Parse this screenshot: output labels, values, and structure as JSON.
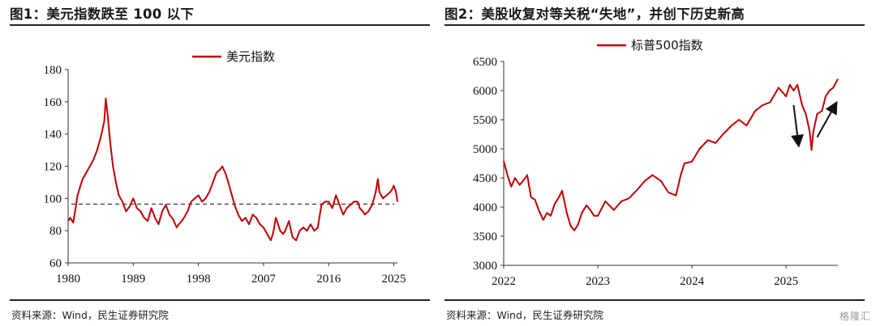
{
  "colors": {
    "series": "#c00000",
    "axis": "#333333",
    "refline": "#222222"
  },
  "watermark": "格隆汇",
  "charts": [
    {
      "title": "图1：美元指数跌至 100 以下",
      "source": "资料来源：Wind，民生证券研究院",
      "chart_data": {
        "type": "line",
        "title": "",
        "xlabel": "",
        "ylabel": "",
        "x_ticks": [
          "1980",
          "1989",
          "1998",
          "2007",
          "2016",
          "2025"
        ],
        "x_range": [
          1980,
          2025.5
        ],
        "ylim": [
          60,
          180
        ],
        "y_ticks": [
          60,
          80,
          100,
          120,
          140,
          160,
          180
        ],
        "grid": false,
        "legend_position": "top-center",
        "reference_line": {
          "y": 96.5,
          "style": "dashed"
        },
        "series": [
          {
            "name": "美元指数",
            "x": [
              1980.0,
              1980.3,
              1980.7,
              1981.0,
              1981.3,
              1981.7,
              1982.0,
              1982.5,
              1983.0,
              1983.5,
              1984.0,
              1984.5,
              1985.0,
              1985.2,
              1985.5,
              1985.8,
              1986.2,
              1986.6,
              1987.0,
              1987.5,
              1988.0,
              1988.5,
              1989.0,
              1989.5,
              1990.0,
              1990.5,
              1991.0,
              1991.5,
              1992.0,
              1992.5,
              1993.0,
              1993.5,
              1994.0,
              1994.5,
              1995.0,
              1995.3,
              1995.7,
              1996.0,
              1996.5,
              1997.0,
              1997.5,
              1998.0,
              1998.5,
              1999.0,
              1999.5,
              2000.0,
              2000.5,
              2001.0,
              2001.3,
              2001.7,
              2002.0,
              2002.5,
              2003.0,
              2003.5,
              2004.0,
              2004.5,
              2005.0,
              2005.5,
              2006.0,
              2006.5,
              2007.0,
              2007.5,
              2008.0,
              2008.3,
              2008.7,
              2009.0,
              2009.3,
              2009.7,
              2010.0,
              2010.5,
              2011.0,
              2011.5,
              2012.0,
              2012.5,
              2013.0,
              2013.5,
              2014.0,
              2014.5,
              2015.0,
              2015.5,
              2016.0,
              2016.5,
              2017.0,
              2017.5,
              2018.0,
              2018.5,
              2019.0,
              2019.5,
              2020.0,
              2020.3,
              2020.7,
              2021.0,
              2021.5,
              2022.0,
              2022.5,
              2022.8,
              2023.0,
              2023.5,
              2024.0,
              2024.5,
              2024.8,
              2025.0,
              2025.3,
              2025.5
            ],
            "values": [
              86,
              88,
              85,
              93,
              102,
              108,
              112,
              116,
              120,
              124,
              130,
              138,
              148,
              162,
              150,
              135,
              120,
              110,
              102,
              98,
              92,
              95,
              100,
              94,
              92,
              88,
              86,
              94,
              88,
              84,
              92,
              96,
              90,
              87,
              82,
              84,
              86,
              88,
              92,
              98,
              100,
              102,
              98,
              100,
              104,
              110,
              116,
              118,
              120,
              116,
              112,
              104,
              96,
              90,
              86,
              88,
              84,
              90,
              88,
              84,
              82,
              78,
              74,
              78,
              88,
              84,
              80,
              78,
              80,
              86,
              76,
              74,
              80,
              82,
              80,
              84,
              80,
              82,
              96,
              98,
              98,
              94,
              102,
              96,
              90,
              94,
              96,
              98,
              98,
              94,
              92,
              90,
              92,
              96,
              104,
              112,
              104,
              100,
              102,
              104,
              106,
              108,
              104,
              98
            ]
          }
        ]
      }
    },
    {
      "title": "图2：美股收复对等关税“失地”，并创下历史新高",
      "source": "资料来源：Wind，民生证券研究院",
      "chart_data": {
        "type": "line",
        "title": "",
        "xlabel": "",
        "ylabel": "",
        "x_ticks": [
          "2022",
          "2023",
          "2024",
          "2025"
        ],
        "x_range": [
          2022.0,
          2025.55
        ],
        "ylim": [
          3000,
          6500
        ],
        "y_ticks": [
          3000,
          3500,
          4000,
          4500,
          5000,
          5500,
          6000,
          6500
        ],
        "grid": false,
        "legend_position": "top-center",
        "annotations": [
          {
            "type": "arrow",
            "direction": "down",
            "from": [
              2025.08,
              5750
            ],
            "to": [
              2025.13,
              5100
            ]
          },
          {
            "type": "arrow",
            "direction": "up",
            "from": [
              2025.33,
              5200
            ],
            "to": [
              2025.52,
              5750
            ]
          }
        ],
        "series": [
          {
            "name": "标普500指数",
            "x": [
              2022.0,
              2022.04,
              2022.08,
              2022.12,
              2022.17,
              2022.21,
              2022.25,
              2022.29,
              2022.33,
              2022.38,
              2022.42,
              2022.46,
              2022.5,
              2022.54,
              2022.58,
              2022.62,
              2022.67,
              2022.71,
              2022.75,
              2022.79,
              2022.83,
              2022.88,
              2022.92,
              2022.96,
              2023.0,
              2023.08,
              2023.17,
              2023.25,
              2023.33,
              2023.42,
              2023.5,
              2023.58,
              2023.67,
              2023.75,
              2023.83,
              2023.88,
              2023.92,
              2024.0,
              2024.08,
              2024.17,
              2024.25,
              2024.33,
              2024.42,
              2024.5,
              2024.58,
              2024.67,
              2024.75,
              2024.83,
              2024.92,
              2025.0,
              2025.04,
              2025.08,
              2025.12,
              2025.17,
              2025.21,
              2025.25,
              2025.27,
              2025.29,
              2025.33,
              2025.38,
              2025.42,
              2025.46,
              2025.5,
              2025.55
            ],
            "values": [
              4790,
              4550,
              4350,
              4500,
              4380,
              4460,
              4550,
              4170,
              4130,
              3920,
              3780,
              3900,
              3850,
              4050,
              4150,
              4280,
              3900,
              3680,
              3600,
              3700,
              3900,
              4030,
              3950,
              3850,
              3850,
              4100,
              3950,
              4100,
              4150,
              4300,
              4450,
              4550,
              4450,
              4250,
              4200,
              4550,
              4750,
              4780,
              5000,
              5150,
              5100,
              5250,
              5400,
              5500,
              5400,
              5650,
              5750,
              5800,
              6050,
              5900,
              6100,
              6000,
              6100,
              5750,
              5600,
              5300,
              4980,
              5300,
              5600,
              5650,
              5900,
              6000,
              6050,
              6200
            ]
          }
        ]
      }
    }
  ]
}
